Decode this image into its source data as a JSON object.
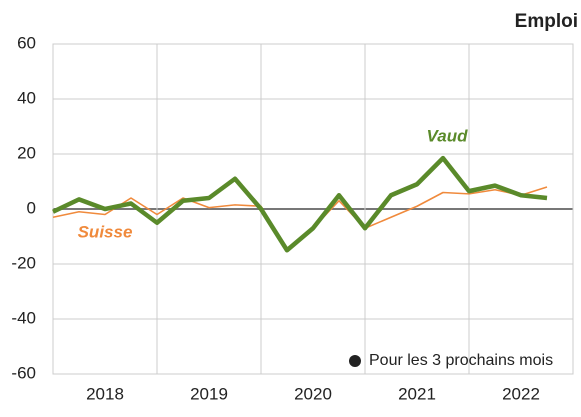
{
  "chart_data": {
    "type": "line",
    "title": "Emploi",
    "x": [
      2018,
      2018.25,
      2018.5,
      2018.75,
      2019,
      2019.25,
      2019.5,
      2019.75,
      2020,
      2020.25,
      2020.5,
      2020.75,
      2021,
      2021.25,
      2021.5,
      2021.75,
      2022,
      2022.25,
      2022.5,
      2022.75
    ],
    "series": [
      {
        "name": "Suisse",
        "color": "#f08a3c",
        "values": [
          -3,
          -1,
          -2,
          4,
          -2,
          4,
          0.5,
          1.5,
          1,
          -15,
          -7,
          3,
          -7,
          -3,
          1,
          6,
          5.5,
          7,
          5,
          8
        ]
      },
      {
        "name": "Vaud",
        "color": "#5a8a2a",
        "values": [
          -1,
          3.5,
          0,
          2,
          -5,
          3,
          4,
          11,
          0,
          -15,
          -7,
          5,
          -7,
          5,
          9,
          18.5,
          6.5,
          8.5,
          5,
          4
        ]
      }
    ],
    "xlim": [
      2018,
      2023
    ],
    "xticks": [
      {
        "value": 2018.5,
        "label": "2018"
      },
      {
        "value": 2019.5,
        "label": "2019"
      },
      {
        "value": 2020.5,
        "label": "2020"
      },
      {
        "value": 2021.5,
        "label": "2021"
      },
      {
        "value": 2022.5,
        "label": "2022"
      }
    ],
    "xgrid": [
      2019,
      2020,
      2021,
      2022
    ],
    "ylim": [
      -60,
      60
    ],
    "yticks": [
      -60,
      -40,
      -20,
      0,
      20,
      40,
      60
    ],
    "grid": true,
    "annotation": "Pour les 3 prochains mois"
  }
}
